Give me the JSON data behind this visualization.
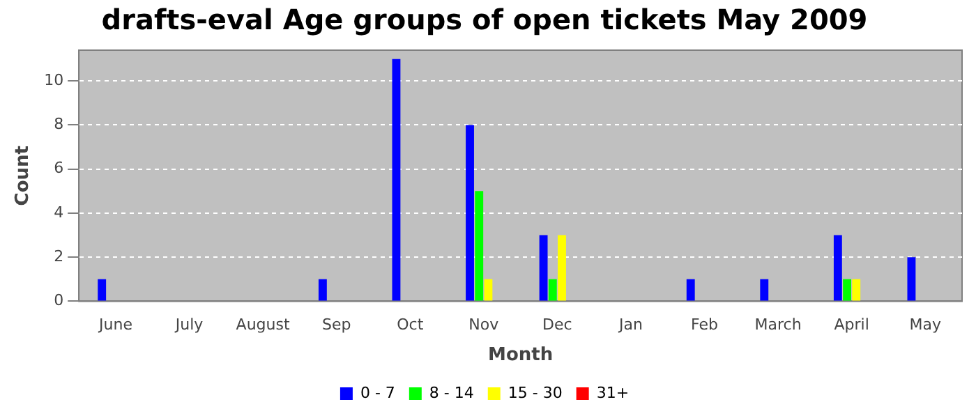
{
  "chart_data": {
    "type": "bar",
    "title": "drafts-eval Age groups of open tickets May 2009",
    "xlabel": "Month",
    "ylabel": "Count",
    "categories": [
      "June",
      "July",
      "August",
      "Sep",
      "Oct",
      "Nov",
      "Dec",
      "Jan",
      "Feb",
      "March",
      "April",
      "May"
    ],
    "series": [
      {
        "name": "0 - 7",
        "color": "#0000ff",
        "values": [
          1,
          0,
          0,
          1,
          11,
          8,
          3,
          0,
          1,
          1,
          3,
          2
        ]
      },
      {
        "name": "8 - 14",
        "color": "#00ff00",
        "values": [
          0,
          0,
          0,
          0,
          0,
          5,
          1,
          0,
          0,
          0,
          1,
          0
        ]
      },
      {
        "name": "15 - 30",
        "color": "#ffff00",
        "values": [
          0,
          0,
          0,
          0,
          0,
          1,
          3,
          0,
          0,
          0,
          1,
          0
        ]
      },
      {
        "name": "31+",
        "color": "#ff0000",
        "values": [
          0,
          0,
          0,
          0,
          0,
          0,
          0,
          0,
          0,
          0,
          0,
          0
        ]
      }
    ],
    "ylim": [
      0,
      11.4
    ],
    "yticks": [
      0,
      2,
      4,
      6,
      8,
      10
    ],
    "grid": "y",
    "legend": "bottom"
  }
}
